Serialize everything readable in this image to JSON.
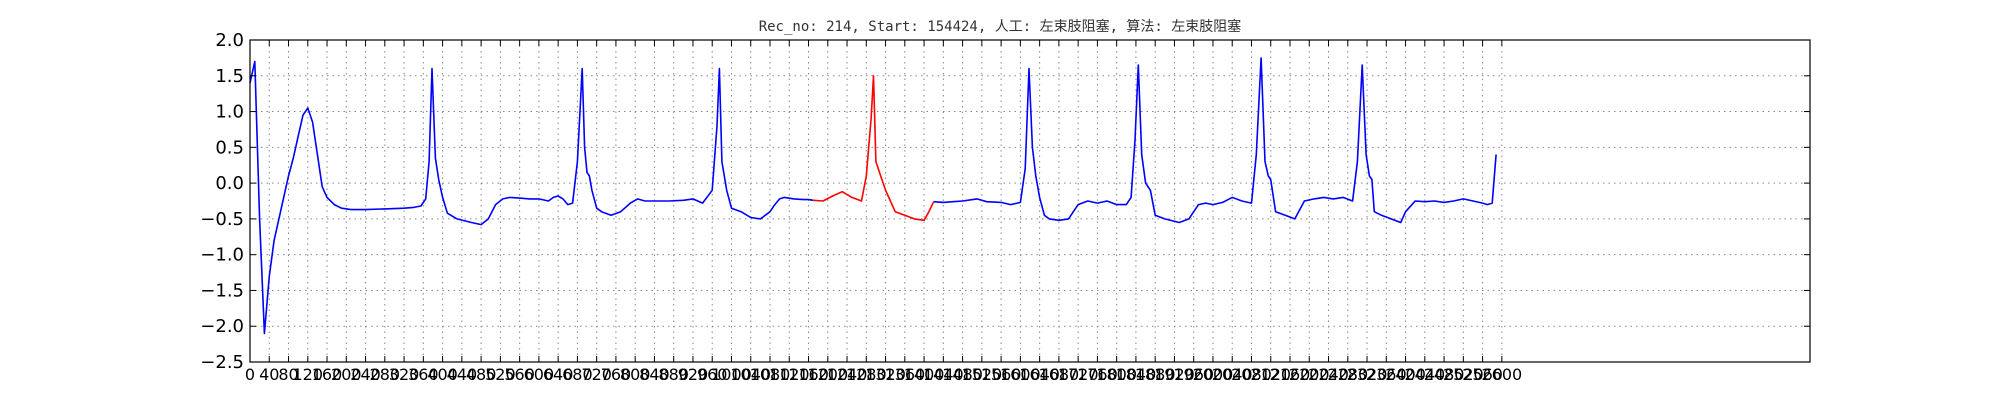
{
  "chart_data": {
    "type": "line",
    "title": "Rec_no: 214, Start: 154424, 人工: 左束肢阻塞, 算法: 左束肢阻塞",
    "xlabel": "",
    "ylabel": "",
    "xlim": [
      0,
      3240
    ],
    "ylim": [
      -2.5,
      2.0
    ],
    "grid": true,
    "yticks": [
      2.0,
      1.5,
      1.0,
      0.5,
      0.0,
      -0.5,
      -1.0,
      -1.5,
      -2.0,
      -2.5
    ],
    "ytick_labels": [
      "2.0",
      "1.5",
      "1.0",
      "0.5",
      "0.0",
      "−0.5",
      "−1.0",
      "−1.5",
      "−2.0",
      "−2.5"
    ],
    "xticks": [
      0,
      40,
      80,
      120,
      160,
      200,
      240,
      280,
      320,
      360,
      400,
      440,
      480,
      520,
      560,
      600,
      640,
      680,
      720,
      760,
      800,
      840,
      880,
      920,
      960,
      1000,
      1040,
      1080,
      1120,
      1160,
      1200,
      1240,
      1280,
      1320,
      1360,
      1400,
      1440,
      1480,
      1520,
      1560,
      1600,
      1640,
      1680,
      1720,
      1760,
      1800,
      1840,
      1880,
      1920,
      1960,
      2000,
      2040,
      2080,
      2120,
      2160,
      2200,
      2240,
      2280,
      2320,
      2360,
      2400,
      2440,
      2480,
      2520,
      2560,
      2600
    ],
    "xtick_labels": [
      "0",
      "40",
      "80",
      "120",
      "160",
      "200",
      "240",
      "280",
      "320",
      "360",
      "400",
      "440",
      "480",
      "520",
      "560",
      "600",
      "640",
      "680",
      "720",
      "760",
      "800",
      "840",
      "880",
      "920",
      "960",
      "1000",
      "1040",
      "1080",
      "1120",
      "1160",
      "1200",
      "1240",
      "1280",
      "1320",
      "1360",
      "1400",
      "1440",
      "1480",
      "1520",
      "1560",
      "1600",
      "1640",
      "1680",
      "1720",
      "1760",
      "1800",
      "1840",
      "1880",
      "1920",
      "1960",
      "2000",
      "2040",
      "2080",
      "2120",
      "2160",
      "2200",
      "2240",
      "2280",
      "2320",
      "2360",
      "2400",
      "2440",
      "2480",
      "2520",
      "2560",
      "2600"
    ],
    "series": [
      {
        "color": "#0000ff",
        "x": [
          0,
          10,
          20,
          30,
          40,
          50,
          60,
          70,
          80,
          90,
          100,
          110,
          120,
          130,
          140,
          150,
          160,
          175,
          190,
          210,
          240,
          280,
          320,
          340,
          355,
          365,
          372,
          378,
          385,
          392,
          400,
          410,
          430,
          460,
          480,
          495,
          510,
          525,
          540,
          560,
          580,
          600,
          620,
          630,
          640,
          650,
          660,
          670,
          680,
          690,
          695,
          700,
          705,
          710,
          720,
          730,
          750,
          770,
          790,
          805,
          820,
          840,
          870,
          900,
          920,
          940,
          960,
          970,
          975,
          980,
          990,
          1000,
          1020,
          1040,
          1060,
          1080,
          1090,
          1100,
          1110,
          1130,
          1150,
          1160,
          1170
        ],
        "y": [
          1.4,
          1.7,
          -0.5,
          -2.1,
          -1.3,
          -0.8,
          -0.5,
          -0.2,
          0.1,
          0.35,
          0.65,
          0.95,
          1.05,
          0.85,
          0.4,
          -0.05,
          -0.2,
          -0.3,
          -0.35,
          -0.37,
          -0.37,
          -0.36,
          -0.35,
          -0.34,
          -0.32,
          -0.22,
          0.3,
          1.6,
          0.35,
          0.05,
          -0.2,
          -0.42,
          -0.5,
          -0.55,
          -0.58,
          -0.5,
          -0.3,
          -0.22,
          -0.2,
          -0.21,
          -0.22,
          -0.22,
          -0.25,
          -0.2,
          -0.18,
          -0.22,
          -0.3,
          -0.28,
          0.3,
          1.6,
          0.5,
          0.15,
          0.1,
          -0.1,
          -0.35,
          -0.4,
          -0.45,
          -0.4,
          -0.28,
          -0.22,
          -0.25,
          -0.25,
          -0.25,
          -0.24,
          -0.22,
          -0.28,
          -0.1,
          0.8,
          1.6,
          0.3,
          -0.1,
          -0.35,
          -0.4,
          -0.48,
          -0.5,
          -0.4,
          -0.3,
          -0.22,
          -0.2,
          -0.22,
          -0.23,
          -0.23,
          -0.24
        ]
      },
      {
        "color": "#ff0000",
        "x": [
          1170,
          1190,
          1210,
          1230,
          1250,
          1270,
          1280,
          1290,
          1295,
          1300,
          1310,
          1320,
          1340,
          1360,
          1380,
          1400,
          1410,
          1420
        ],
        "y": [
          -0.24,
          -0.25,
          -0.18,
          -0.12,
          -0.2,
          -0.25,
          0.1,
          0.9,
          1.5,
          0.3,
          0.1,
          -0.1,
          -0.4,
          -0.45,
          -0.5,
          -0.52,
          -0.4,
          -0.26
        ]
      },
      {
        "color": "#0000ff",
        "x": [
          1420,
          1440,
          1460,
          1480,
          1510,
          1530,
          1560,
          1580,
          1600,
          1610,
          1618,
          1625,
          1632,
          1640,
          1650,
          1660,
          1680,
          1700,
          1720,
          1740,
          1760,
          1780,
          1800,
          1820,
          1830,
          1838,
          1845,
          1852,
          1860,
          1870,
          1880,
          1900,
          1930,
          1950,
          1970,
          1985,
          2000,
          2020,
          2040,
          2060,
          2080,
          2090,
          2100,
          2108,
          2115,
          2120,
          2130,
          2150,
          2170,
          2190,
          2210,
          2230,
          2250,
          2270,
          2290,
          2300,
          2310,
          2318,
          2325,
          2330,
          2335,
          2350,
          2370,
          2390,
          2400,
          2420,
          2440,
          2460,
          2480,
          2500,
          2520,
          2540,
          2560,
          2570,
          2580,
          2588
        ],
        "y": [
          -0.26,
          -0.27,
          -0.26,
          -0.25,
          -0.22,
          -0.26,
          -0.27,
          -0.3,
          -0.27,
          0.2,
          1.6,
          0.5,
          0.1,
          -0.2,
          -0.45,
          -0.5,
          -0.52,
          -0.5,
          -0.3,
          -0.25,
          -0.28,
          -0.25,
          -0.3,
          -0.3,
          -0.2,
          0.6,
          1.65,
          0.4,
          0.0,
          -0.1,
          -0.45,
          -0.5,
          -0.55,
          -0.5,
          -0.3,
          -0.28,
          -0.3,
          -0.27,
          -0.2,
          -0.25,
          -0.28,
          0.4,
          1.75,
          0.3,
          0.1,
          0.05,
          -0.4,
          -0.45,
          -0.5,
          -0.25,
          -0.22,
          -0.2,
          -0.22,
          -0.2,
          -0.25,
          0.3,
          1.65,
          0.4,
          0.1,
          0.05,
          -0.4,
          -0.45,
          -0.5,
          -0.55,
          -0.4,
          -0.25,
          -0.26,
          -0.25,
          -0.27,
          -0.25,
          -0.22,
          -0.25,
          -0.28,
          -0.3,
          -0.28,
          0.4
        ]
      }
    ]
  }
}
